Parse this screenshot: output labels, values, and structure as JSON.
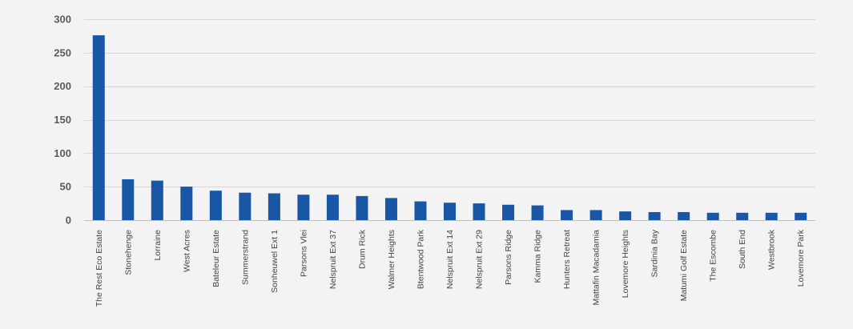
{
  "chart_data": {
    "type": "bar",
    "categories": [
      "The Rest Eco Estate",
      "Stonehenge",
      "Lorraine",
      "West Acres",
      "Bateleur Estate",
      "Summerstrand",
      "Sonheuwel Ext 1",
      "Parsons Vlei",
      "Nelspruit Ext 37",
      "Drum Rick",
      "Walmer Heights",
      "Btentwood Park",
      "Nelspruit Ext 14",
      "Nelspruit Ext 29",
      "Parsons Ridge",
      "Kamma  Ridge",
      "Hunters Retreat",
      "Mattafin Macadamia",
      "Lovemore Heights",
      "Sardinia Bay",
      "Matumi Golf Estate",
      "The Escombe",
      "South End",
      "Westbrook",
      "Lovemore Park"
    ],
    "values": [
      276,
      61,
      59,
      50,
      44,
      41,
      40,
      38,
      38,
      36,
      33,
      28,
      26,
      25,
      23,
      22,
      15,
      15,
      13,
      12,
      12,
      11,
      11,
      11,
      11
    ],
    "yticks": [
      0,
      50,
      100,
      150,
      200,
      250,
      300
    ],
    "ylim": [
      0,
      300
    ],
    "grid": true,
    "title": "",
    "xlabel": "",
    "ylabel": "",
    "bar_color": "#1a56a6",
    "grid_color": "#d6d6d6",
    "background_color": "#f3f3f3"
  }
}
